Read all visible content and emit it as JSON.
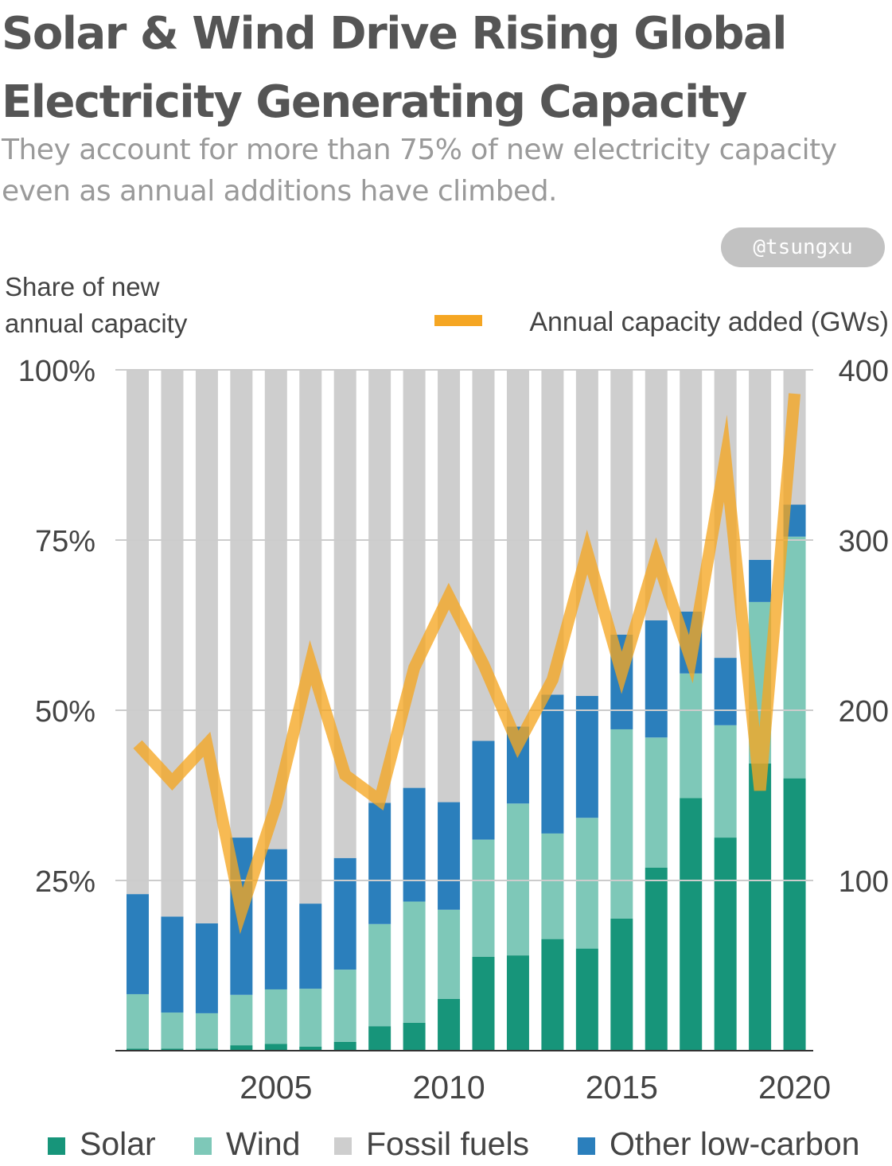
{
  "title": "Solar & Wind Drive Rising Global Electricity Generating Capacity",
  "subtitle": "They account for more than 75% of new electricity capacity even as annual additions have climbed.",
  "credit": "@tsungxu",
  "colors": {
    "solar": "#17957a",
    "wind": "#7ec8b8",
    "fossil": "#cecece",
    "other": "#2b7fbc",
    "line": "#f5a623",
    "text": "#444444",
    "grid": "#cccccc"
  },
  "chart_data": {
    "type": "bar",
    "stacked": true,
    "title": "Solar & Wind Drive Rising Global Electricity Generating Capacity",
    "ylabel": "Share of new\nannual capacity",
    "y2label": "Annual capacity added (GWs)",
    "ylim": [
      0,
      100
    ],
    "y2lim": [
      0,
      400
    ],
    "y_ticks": [
      "25%",
      "50%",
      "75%",
      "100%"
    ],
    "y_tick_values": [
      25,
      50,
      75,
      100
    ],
    "y2_ticks": [
      "100",
      "200",
      "300",
      "400"
    ],
    "y2_tick_values": [
      100,
      200,
      300,
      400
    ],
    "x_ticks": [
      "2005",
      "2010",
      "2015",
      "2020"
    ],
    "x_tick_values": [
      2005,
      2010,
      2015,
      2020
    ],
    "years": [
      2001,
      2002,
      2003,
      2004,
      2005,
      2006,
      2007,
      2008,
      2009,
      2010,
      2011,
      2012,
      2013,
      2014,
      2015,
      2016,
      2017,
      2018,
      2019,
      2020
    ],
    "series": [
      {
        "name": "Solar",
        "key": "solar",
        "values": [
          0.3,
          0.3,
          0.3,
          0.8,
          1.0,
          0.6,
          1.3,
          3.6,
          4.1,
          7.6,
          13.8,
          14.0,
          16.4,
          15.0,
          19.4,
          26.9,
          37.1,
          31.3,
          42.2,
          40.0
        ]
      },
      {
        "name": "Wind",
        "key": "wind",
        "values": [
          8.0,
          5.3,
          5.2,
          7.4,
          8.0,
          8.5,
          10.6,
          15.0,
          17.8,
          13.1,
          17.2,
          22.3,
          15.5,
          19.2,
          27.8,
          19.1,
          18.3,
          16.5,
          23.7,
          35.5
        ]
      },
      {
        "name": "Other low-carbon",
        "key": "other",
        "values": [
          14.7,
          14.1,
          13.2,
          23.1,
          20.6,
          12.5,
          16.4,
          17.8,
          16.7,
          15.8,
          14.5,
          11.3,
          20.4,
          17.9,
          13.9,
          17.2,
          9.1,
          9.9,
          6.2,
          4.7
        ]
      },
      {
        "name": "Fossil fuels",
        "key": "fossil",
        "values": [
          77.0,
          80.3,
          81.3,
          68.7,
          70.4,
          78.4,
          71.7,
          63.6,
          61.4,
          63.5,
          54.5,
          52.4,
          47.7,
          47.9,
          38.9,
          36.8,
          35.5,
          42.3,
          27.9,
          19.8
        ]
      }
    ],
    "line": {
      "name": "Annual capacity added (GWs)",
      "axis": "right",
      "values": [
        180,
        158,
        180,
        82,
        144,
        228,
        162,
        147,
        225,
        267,
        227,
        180,
        218,
        293,
        222,
        290,
        230,
        348,
        153,
        386
      ]
    },
    "legend": [
      "Solar",
      "Wind",
      "Fossil fuels",
      "Other low-carbon"
    ],
    "legend_position": "bottom"
  }
}
